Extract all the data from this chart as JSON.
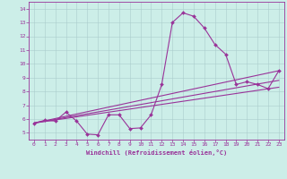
{
  "xlabel": "Windchill (Refroidissement éolien,°C)",
  "bg_color": "#cceee8",
  "line_color": "#993399",
  "grid_color": "#aacccc",
  "axis_color": "#993399",
  "xlim": [
    -0.5,
    23.5
  ],
  "ylim": [
    4.5,
    14.5
  ],
  "xticks": [
    0,
    1,
    2,
    3,
    4,
    5,
    6,
    7,
    8,
    9,
    10,
    11,
    12,
    13,
    14,
    15,
    16,
    17,
    18,
    19,
    20,
    21,
    22,
    23
  ],
  "yticks": [
    5,
    6,
    7,
    8,
    9,
    10,
    11,
    12,
    13,
    14
  ],
  "main_x": [
    0,
    1,
    2,
    3,
    4,
    5,
    6,
    7,
    8,
    9,
    10,
    11,
    12,
    13,
    14,
    15,
    16,
    17,
    18,
    19,
    20,
    21,
    22,
    23
  ],
  "main_y": [
    5.7,
    5.9,
    5.85,
    6.5,
    5.85,
    4.9,
    4.85,
    6.3,
    6.3,
    5.3,
    5.35,
    6.3,
    8.5,
    13.0,
    13.7,
    13.45,
    12.6,
    11.4,
    10.7,
    8.5,
    8.7,
    8.5,
    8.2,
    9.5
  ],
  "trend1_x": [
    0,
    23
  ],
  "trend1_y": [
    5.7,
    9.5
  ],
  "trend2_x": [
    0,
    23
  ],
  "trend2_y": [
    5.7,
    8.8
  ],
  "trend3_x": [
    0,
    23
  ],
  "trend3_y": [
    5.7,
    8.3
  ]
}
